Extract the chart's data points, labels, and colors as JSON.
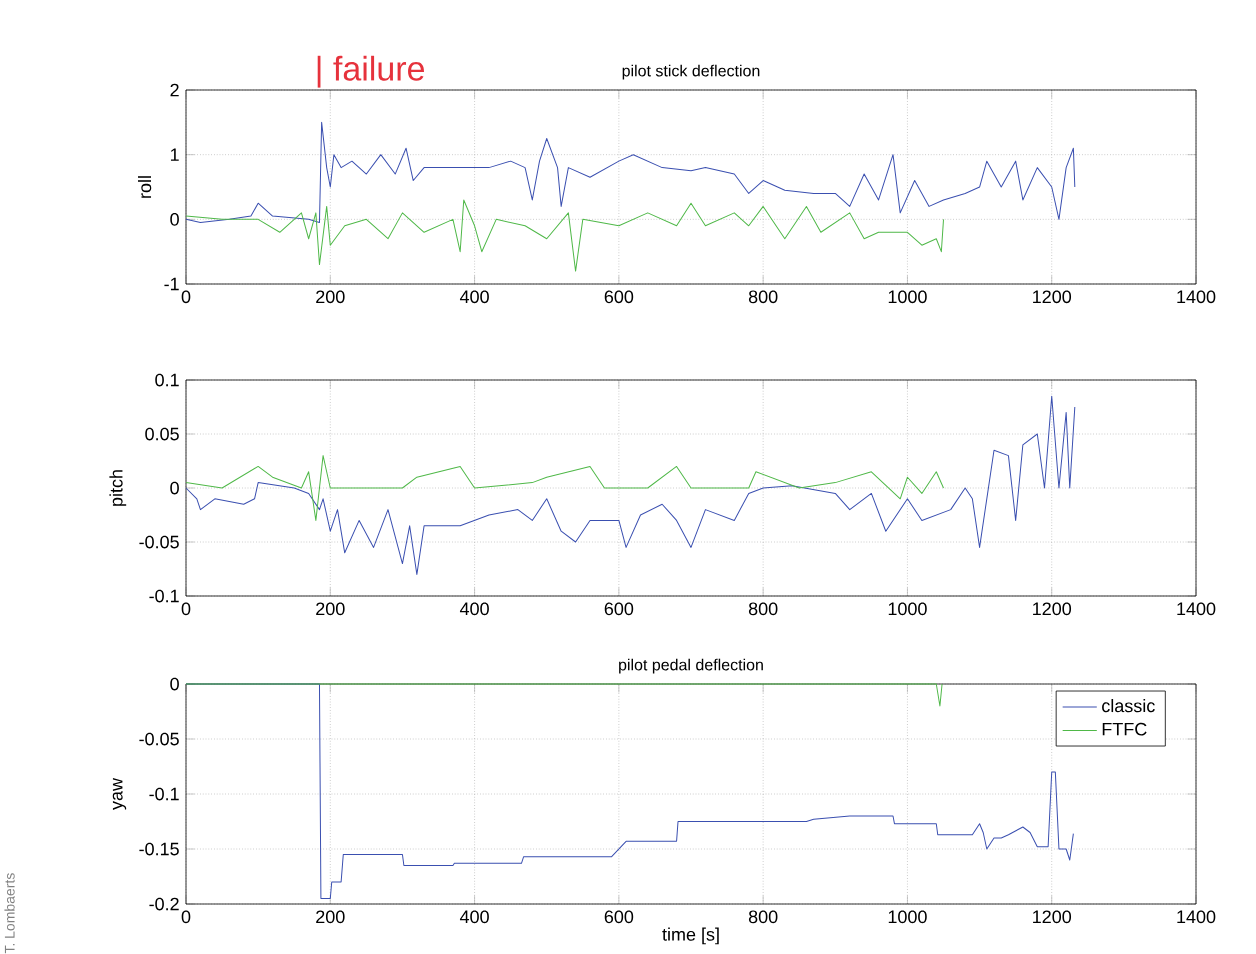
{
  "chart_data": [
    {
      "type": "line",
      "title": "pilot stick deflection",
      "ylabel": "roll",
      "xlim": [
        0,
        1400
      ],
      "xticks": [
        0,
        200,
        400,
        600,
        800,
        1000,
        1200,
        1400
      ],
      "ylim": [
        -1,
        2
      ],
      "yticks": [
        -1,
        0,
        1,
        2
      ],
      "grid": true,
      "annotations": [
        "| failure"
      ],
      "series": [
        {
          "color": "#3a4fb0",
          "x": [
            0,
            20,
            60,
            90,
            100,
            120,
            170,
            185,
            188,
            195,
            200,
            205,
            215,
            230,
            250,
            270,
            290,
            305,
            315,
            330,
            380,
            420,
            450,
            470,
            480,
            490,
            500,
            515,
            520,
            530,
            560,
            600,
            620,
            660,
            700,
            720,
            760,
            780,
            800,
            830,
            870,
            900,
            920,
            940,
            960,
            980,
            990,
            1010,
            1030,
            1050,
            1080,
            1100,
            1110,
            1130,
            1150,
            1160,
            1180,
            1200,
            1210,
            1220,
            1230,
            1232
          ],
          "values": [
            0,
            -0.05,
            0,
            0.05,
            0.25,
            0.05,
            0,
            -0.05,
            1.5,
            0.8,
            0.5,
            1.0,
            0.8,
            0.9,
            0.7,
            1.0,
            0.7,
            1.1,
            0.6,
            0.8,
            0.8,
            0.8,
            0.9,
            0.8,
            0.3,
            0.9,
            1.25,
            0.8,
            0.2,
            0.8,
            0.65,
            0.9,
            1.0,
            0.8,
            0.75,
            0.8,
            0.7,
            0.4,
            0.6,
            0.45,
            0.4,
            0.4,
            0.2,
            0.7,
            0.3,
            1.0,
            0.1,
            0.6,
            0.2,
            0.3,
            0.4,
            0.5,
            0.9,
            0.5,
            0.9,
            0.3,
            0.8,
            0.5,
            0.0,
            0.8,
            1.1,
            0.5
          ]
        },
        {
          "color": "#4fb848",
          "x": [
            0,
            50,
            100,
            130,
            160,
            170,
            180,
            185,
            195,
            200,
            220,
            250,
            280,
            300,
            330,
            370,
            380,
            385,
            400,
            410,
            430,
            470,
            500,
            530,
            540,
            550,
            600,
            640,
            680,
            700,
            720,
            760,
            780,
            800,
            830,
            860,
            880,
            920,
            940,
            960,
            1000,
            1020,
            1040,
            1047,
            1050
          ],
          "values": [
            0.05,
            0,
            0,
            -0.2,
            0.1,
            -0.3,
            0.1,
            -0.7,
            0.2,
            -0.4,
            -0.1,
            0,
            -0.3,
            0.1,
            -0.2,
            0,
            -0.5,
            0.3,
            -0.1,
            -0.5,
            0,
            -0.1,
            -0.3,
            0.1,
            -0.8,
            0,
            -0.1,
            0.1,
            -0.1,
            0.25,
            -0.1,
            0.1,
            -0.1,
            0.2,
            -0.3,
            0.2,
            -0.2,
            0.1,
            -0.3,
            -0.2,
            -0.2,
            -0.4,
            -0.3,
            -0.5,
            0
          ]
        }
      ]
    },
    {
      "type": "line",
      "ylabel": "pitch",
      "xlim": [
        0,
        1400
      ],
      "xticks": [
        0,
        200,
        400,
        600,
        800,
        1000,
        1200,
        1400
      ],
      "ylim": [
        -0.1,
        0.1
      ],
      "yticks": [
        -0.1,
        -0.05,
        0,
        0.05,
        0.1
      ],
      "grid": true,
      "series": [
        {
          "color": "#3a4fb0",
          "x": [
            0,
            15,
            20,
            40,
            80,
            95,
            100,
            150,
            170,
            185,
            190,
            200,
            210,
            220,
            240,
            260,
            280,
            300,
            310,
            320,
            330,
            380,
            420,
            460,
            480,
            500,
            520,
            540,
            560,
            600,
            610,
            630,
            660,
            680,
            700,
            720,
            760,
            780,
            800,
            840,
            900,
            920,
            950,
            970,
            1000,
            1020,
            1060,
            1080,
            1090,
            1100,
            1110,
            1120,
            1140,
            1150,
            1160,
            1180,
            1190,
            1200,
            1210,
            1220,
            1225,
            1232
          ],
          "values": [
            0,
            -0.01,
            -0.02,
            -0.01,
            -0.015,
            -0.01,
            0.005,
            0,
            -0.005,
            -0.02,
            -0.01,
            -0.04,
            -0.02,
            -0.06,
            -0.03,
            -0.055,
            -0.02,
            -0.07,
            -0.035,
            -0.08,
            -0.035,
            -0.035,
            -0.025,
            -0.02,
            -0.03,
            -0.01,
            -0.04,
            -0.05,
            -0.03,
            -0.03,
            -0.055,
            -0.025,
            -0.015,
            -0.03,
            -0.055,
            -0.02,
            -0.03,
            -0.005,
            0,
            0.002,
            -0.005,
            -0.02,
            -0.005,
            -0.04,
            -0.01,
            -0.03,
            -0.02,
            0,
            -0.01,
            -0.055,
            -0.01,
            0.035,
            0.03,
            -0.03,
            0.04,
            0.05,
            0,
            0.085,
            0,
            0.07,
            0,
            0.075
          ]
        },
        {
          "color": "#4fb848",
          "x": [
            0,
            50,
            100,
            120,
            160,
            170,
            180,
            190,
            200,
            300,
            320,
            380,
            400,
            480,
            500,
            560,
            580,
            640,
            680,
            700,
            780,
            790,
            850,
            900,
            950,
            990,
            1000,
            1020,
            1040,
            1050
          ],
          "values": [
            0.005,
            0,
            0.02,
            0.01,
            0,
            0.015,
            -0.03,
            0.03,
            0,
            0,
            0.01,
            0.02,
            0,
            0.005,
            0.01,
            0.02,
            0,
            0,
            0.02,
            0,
            0,
            0.015,
            0,
            0.005,
            0.015,
            -0.01,
            0.01,
            -0.005,
            0.015,
            0
          ]
        }
      ]
    },
    {
      "type": "line",
      "title": "pilot pedal deflection",
      "xlabel": "time [s]",
      "ylabel": "yaw",
      "xlim": [
        0,
        1400
      ],
      "xticks": [
        0,
        200,
        400,
        600,
        800,
        1000,
        1200,
        1400
      ],
      "ylim": [
        -0.2,
        0
      ],
      "yticks": [
        -0.2,
        -0.15,
        -0.1,
        -0.05,
        0
      ],
      "grid": true,
      "legend": "top right",
      "annotations": [
        "T. Lombaerts"
      ],
      "series": [
        {
          "name": "classic",
          "color": "#3a4fb0",
          "x": [
            0,
            185,
            187,
            200,
            202,
            215,
            218,
            300,
            302,
            370,
            372,
            465,
            468,
            590,
            600,
            610,
            680,
            682,
            860,
            870,
            920,
            980,
            982,
            1040,
            1042,
            1090,
            1100,
            1105,
            1110,
            1120,
            1130,
            1140,
            1160,
            1170,
            1180,
            1195,
            1200,
            1205,
            1210,
            1220,
            1225,
            1230
          ],
          "values": [
            0,
            0,
            -0.195,
            -0.195,
            -0.18,
            -0.18,
            -0.155,
            -0.155,
            -0.165,
            -0.165,
            -0.163,
            -0.163,
            -0.157,
            -0.157,
            -0.15,
            -0.143,
            -0.143,
            -0.125,
            -0.125,
            -0.123,
            -0.12,
            -0.12,
            -0.127,
            -0.127,
            -0.137,
            -0.137,
            -0.127,
            -0.135,
            -0.15,
            -0.14,
            -0.14,
            -0.137,
            -0.13,
            -0.135,
            -0.148,
            -0.148,
            -0.08,
            -0.08,
            -0.15,
            -0.15,
            -0.16,
            -0.136
          ]
        },
        {
          "name": "FTFC",
          "color": "#4fb848",
          "x": [
            0,
            1040,
            1045,
            1048
          ],
          "values": [
            0,
            0,
            -0.02,
            0
          ]
        }
      ]
    }
  ]
}
